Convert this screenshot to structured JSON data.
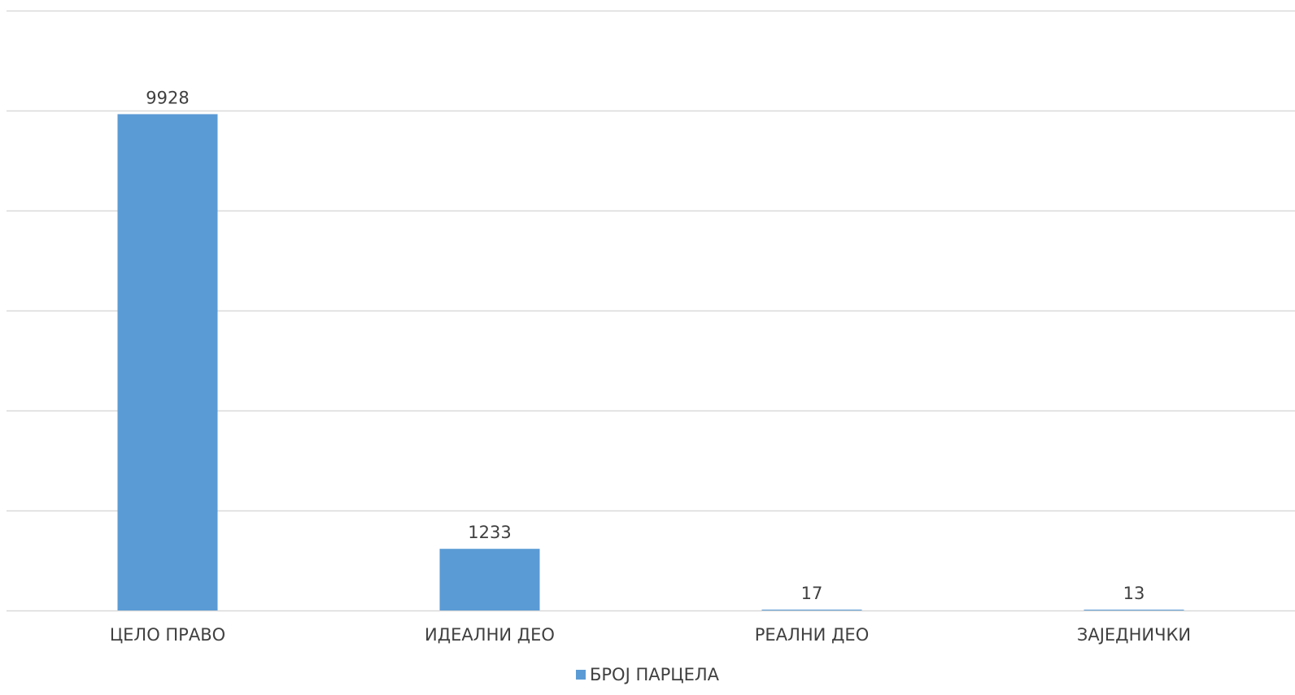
{
  "chart_data": {
    "type": "bar",
    "title": "",
    "xlabel": "",
    "ylabel": "",
    "categories": [
      "ЦЕЛО ПРАВО",
      "ИДЕАЛНИ ДЕО",
      "РЕАЛНИ ДЕО",
      "ЗАЈЕДНИЧКИ"
    ],
    "series": [
      {
        "name": "БРОЈ ПАРЦЕЛА",
        "values": [
          9928,
          1233,
          17,
          13
        ],
        "color": "#5B9BD5"
      }
    ],
    "ylim": [
      0,
      12000
    ],
    "y_gridlines": [
      0,
      2000,
      4000,
      6000,
      8000,
      10000,
      12000
    ],
    "grid": true,
    "show_y_tick_labels": false,
    "data_labels": true,
    "legend_position": "bottom"
  },
  "colors": {
    "bar": "#5B9BD5",
    "grid": "#D9D9D9",
    "text": "#404040"
  }
}
